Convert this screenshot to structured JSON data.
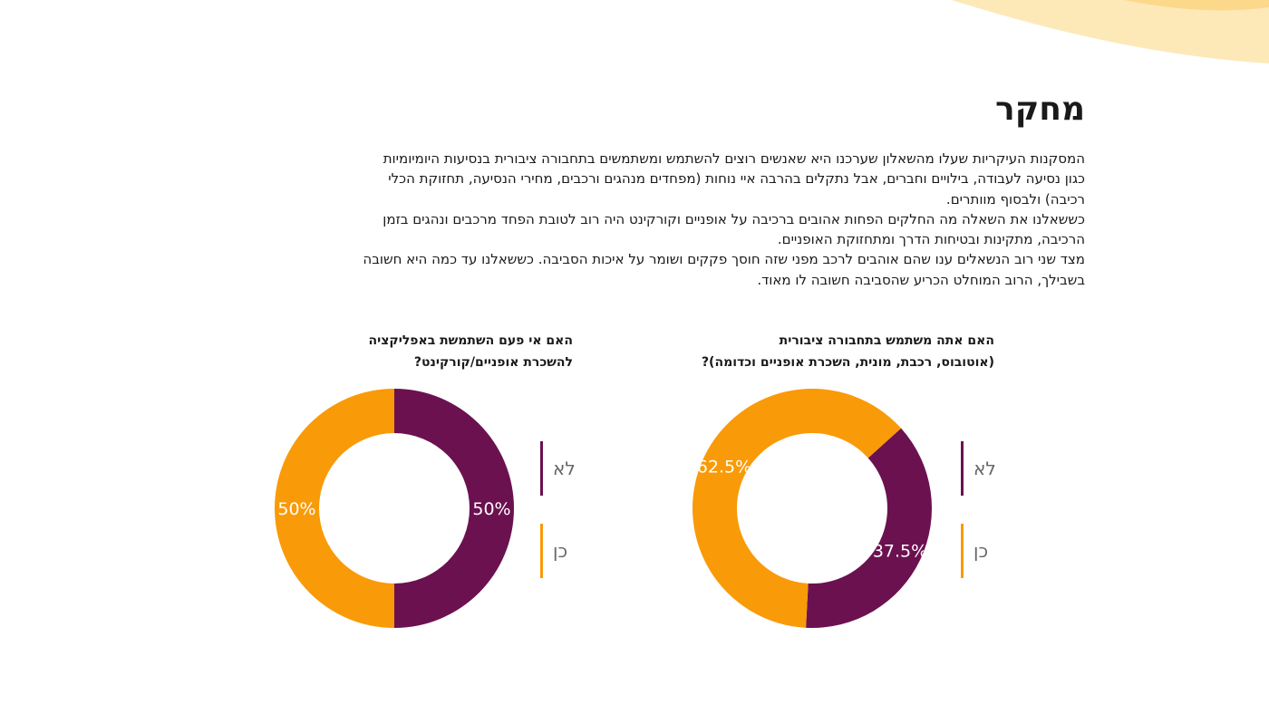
{
  "title": "מחקר",
  "intro_paragraphs": [
    "המסקנות העיקריות שעלו מהשאלון שערכנו היא שאנשים רוצים להשתמש ומשתמשים בתחבורה ציבורית בנסיעות היומיומיות כגון נסיעה לעבודה, בילויים וחברים, אבל נתקלים בהרבה איי נוחות (מפחדים מנהגים ורכבים, מחירי הנסיעה, תחזוקת הכלי רכיבה) ולבסוף מוותרים.",
    "כששאלנו את השאלה מה החלקים הפחות אהובים ברכיבה על אופניים וקורקינט היה רוב לטובת הפחד מרכבים ונהגים בזמן הרכיבה, מתקינות ובטיחות הדרך ומתחזוקת האופניים.",
    "מצד שני רוב הנשאלים ענו שהם  אוהבים לרכב מפני שזה חוסך פקקים ושומר על איכות הסביבה. כששאלנו עד כמה היא חשובה בשבילך, הרוב המוחלט הכריע שהסביבה חשובה לו מאוד."
  ],
  "colors": {
    "no": "#6b1150",
    "yes": "#f99a08",
    "decor_light": "#fde9b8",
    "decor_mid": "#fcd98a"
  },
  "chart_data": [
    {
      "type": "pie",
      "title_lines": [
        "האם אתה משתמש בתחבורה ציבורית",
        "(אוטובוס, רכבת, מונית, השכרת אופניים וכדומה)?"
      ],
      "categories": [
        "לא",
        "כן"
      ],
      "values": [
        37.5,
        62.5
      ],
      "value_labels": [
        "37.5%",
        "62.5%"
      ],
      "colors": [
        "#6b1150",
        "#f99a08"
      ],
      "legend_position": "left"
    },
    {
      "type": "pie",
      "title_lines": [
        "האם אי פעם השתמשת באפליקציה",
        "להשכרת אופניים/קורקינט?"
      ],
      "categories": [
        "לא",
        "כן"
      ],
      "values": [
        50,
        50
      ],
      "value_labels": [
        "50%",
        "50%"
      ],
      "colors": [
        "#6b1150",
        "#f99a08"
      ],
      "legend_position": "right"
    }
  ]
}
